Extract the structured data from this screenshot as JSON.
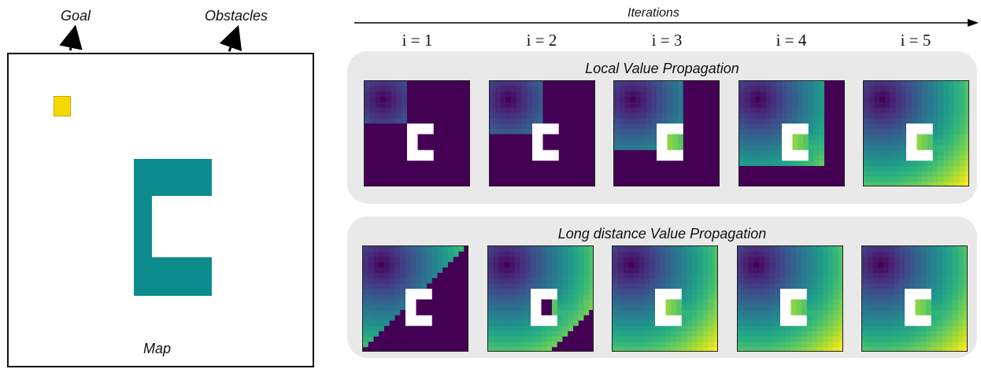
{
  "map": {
    "goal_label": "Goal",
    "obstacles_label": "Obstacles",
    "map_label": "Map",
    "goal_color": "#f5d800",
    "obstacle_color": "#0c8c8c"
  },
  "iterations": {
    "axis_label": "Iterations",
    "steps": [
      "i = 1",
      "i = 2",
      "i = 3",
      "i = 4",
      "i = 5"
    ]
  },
  "panels": {
    "local": {
      "title": "Local Value Propagation"
    },
    "long": {
      "title": "Long distance Value Propagation"
    }
  },
  "colors": {
    "unvisited": "#440154",
    "wall": "#ffffff",
    "panel_bg": "#e9e9e9"
  }
}
